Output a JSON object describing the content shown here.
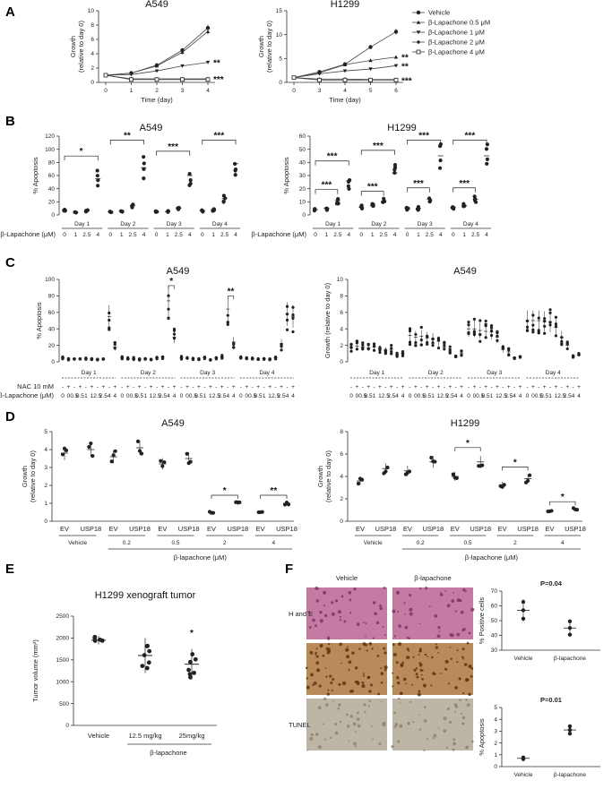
{
  "panels": [
    "A",
    "B",
    "C",
    "D",
    "E",
    "F"
  ],
  "chart_data": [
    {
      "id": "A-A549",
      "type": "line",
      "title": "A549",
      "xlabel": "Time (day)",
      "ylabel": "Growth\n(relative to day 0)",
      "x": [
        0,
        1,
        2,
        3,
        4
      ],
      "ylim": [
        0,
        10
      ],
      "yticks": [
        0,
        2,
        4,
        6,
        8,
        10
      ],
      "series": [
        {
          "name": "Vehicle",
          "marker": "circle",
          "values": [
            1,
            1.3,
            2.4,
            4.5,
            7.6
          ]
        },
        {
          "name": "β-Lapachone 0.5 μM",
          "marker": "triangle",
          "values": [
            1,
            1.3,
            2.3,
            4.2,
            7.1
          ]
        },
        {
          "name": "β-Lapachone 1 μM",
          "marker": "triangle-down",
          "values": [
            1,
            1.1,
            1.6,
            2.3,
            2.8
          ]
        },
        {
          "name": "β-Lapachone 2 μM",
          "marker": "diamond",
          "values": [
            1,
            0.5,
            0.5,
            0.5,
            0.5
          ]
        },
        {
          "name": "β-Lapachone 4 μM",
          "marker": "square-open",
          "values": [
            1,
            0.4,
            0.4,
            0.4,
            0.4
          ]
        }
      ],
      "annotations": [
        "**",
        "***"
      ]
    },
    {
      "id": "A-H1299",
      "type": "line",
      "title": "H1299",
      "xlabel": "Time (day)",
      "ylabel": "Growth\n(relative to day 0)",
      "x": [
        0,
        3,
        4,
        5,
        6
      ],
      "ylim": [
        0,
        15
      ],
      "yticks": [
        0,
        5,
        10,
        15
      ],
      "legend": [
        "Vehicle",
        "β-Lapachone 0.5 μM",
        "β-Lapachone 1 μM",
        "β-Lapachone 2 μM",
        "β-Lapachone 4 μM"
      ],
      "series": [
        {
          "name": "Vehicle",
          "marker": "circle",
          "values": [
            1,
            2.2,
            3.8,
            7.4,
            10.6
          ]
        },
        {
          "name": "β-Lapachone 0.5 μM",
          "marker": "triangle",
          "values": [
            1,
            2.0,
            3.7,
            4.6,
            5.3
          ]
        },
        {
          "name": "β-Lapachone 1 μM",
          "marker": "triangle-down",
          "values": [
            1,
            1.8,
            2.4,
            2.8,
            3.5
          ]
        },
        {
          "name": "β-Lapachone 2 μM",
          "marker": "diamond",
          "values": [
            1,
            0.7,
            0.7,
            0.6,
            0.6
          ]
        },
        {
          "name": "β-Lapachone 4 μM",
          "marker": "square-open",
          "values": [
            1,
            0.5,
            0.5,
            0.5,
            0.5
          ]
        }
      ],
      "annotations": [
        "**",
        "**",
        "***"
      ]
    },
    {
      "id": "B-A549",
      "type": "scatter",
      "title": "A549",
      "ylabel": "% Apoptosis",
      "ylim": [
        0,
        120
      ],
      "yticks": [
        0,
        20,
        40,
        60,
        80,
        100,
        120
      ],
      "groups": [
        "Day 1",
        "Day 2",
        "Day 3",
        "Day 4"
      ],
      "doses": [
        "0",
        "1",
        "2.5",
        "4"
      ],
      "xlabel_prefix": "β-Lapachone (μM)",
      "means": [
        [
          8,
          4,
          6,
          55
        ],
        [
          5,
          6,
          14,
          72
        ],
        [
          5,
          5,
          10,
          60
        ],
        [
          6,
          8,
          25,
          78
        ]
      ],
      "sig": [
        "*",
        "**",
        "***",
        "***"
      ]
    },
    {
      "id": "B-H1299",
      "type": "scatter",
      "title": "H1299",
      "ylabel": "% Apoptosis",
      "ylim": [
        0,
        60
      ],
      "yticks": [
        0,
        10,
        20,
        30,
        40,
        50,
        60
      ],
      "groups": [
        "Day 1",
        "Day 2",
        "Day 3",
        "Day 4"
      ],
      "doses": [
        "0",
        "1",
        "2.5",
        "4"
      ],
      "xlabel_prefix": "β-Lapachone (μM)",
      "means": [
        [
          4,
          5,
          11,
          26
        ],
        [
          6,
          7,
          10,
          32
        ],
        [
          5,
          5,
          12,
          45
        ],
        [
          6,
          7,
          12,
          45
        ]
      ],
      "sig": [
        "***",
        "***",
        "***",
        "***",
        "***",
        "***",
        "***",
        "***"
      ]
    },
    {
      "id": "C-left",
      "type": "scatter",
      "title": "A549",
      "ylabel": "% Apoptosis",
      "ylim": [
        0,
        100
      ],
      "yticks": [
        0,
        20,
        40,
        60,
        80,
        100
      ],
      "groups": [
        "Day 1",
        "Day 2",
        "Day 3",
        "Day 4"
      ],
      "row1_label": "NAC 10 mM",
      "row2_label": "β-Lapachone (μM)",
      "nac": [
        "-",
        "+",
        "-",
        "+",
        "-",
        "+",
        "-",
        "+",
        "-",
        "+"
      ],
      "dose": [
        "0",
        "0",
        "0.5",
        "0.5",
        "1",
        "1",
        "2.5",
        "2.5",
        "4",
        "4"
      ],
      "means": [
        [
          5,
          3,
          4,
          3,
          4,
          3,
          3,
          3,
          55,
          18
        ],
        [
          5,
          4,
          4,
          3,
          4,
          3,
          5,
          6,
          74,
          30
        ],
        [
          5,
          4,
          4,
          3,
          5,
          3,
          5,
          6,
          64,
          24
        ],
        [
          5,
          4,
          4,
          3,
          4,
          3,
          5,
          22,
          58,
          55
        ]
      ],
      "sig": [
        "*",
        "**"
      ]
    },
    {
      "id": "C-right",
      "type": "scatter",
      "title": "A549",
      "ylabel": "Growth (relative to day 0)",
      "ylim": [
        0,
        10
      ],
      "yticks": [
        0,
        2,
        4,
        6,
        8,
        10
      ],
      "groups": [
        "Day 1",
        "Day 2",
        "Day 3",
        "Day 4"
      ],
      "nac": [
        "-",
        "+",
        "-",
        "+",
        "-",
        "+",
        "-",
        "+",
        "-",
        "+"
      ],
      "dose": [
        "0",
        "0",
        "0.5",
        "0.5",
        "1",
        "1",
        "2.5",
        "2.5",
        "4",
        "4"
      ],
      "means": [
        [
          1.8,
          1.9,
          1.8,
          1.7,
          1.8,
          1.6,
          1.4,
          1.5,
          0.8,
          1.0
        ],
        [
          3.2,
          3.0,
          3.1,
          2.9,
          2.8,
          2.5,
          1.8,
          1.6,
          0.6,
          1.0
        ],
        [
          4.0,
          4.0,
          3.8,
          3.7,
          3.6,
          3.0,
          1.5,
          1.2,
          0.5,
          0.7
        ],
        [
          5.0,
          5.0,
          5.0,
          4.9,
          4.8,
          4.2,
          3.0,
          2.0,
          0.6,
          0.8
        ]
      ]
    },
    {
      "id": "D-A549",
      "type": "scatter",
      "title": "A549",
      "ylabel": "Growth\n(relative to day 0)",
      "ylim": [
        0,
        5
      ],
      "yticks": [
        0,
        1,
        2,
        3,
        4,
        5
      ],
      "categories": [
        "EV",
        "USP18",
        "EV",
        "USP18",
        "EV",
        "USP18",
        "EV",
        "USP18",
        "EV",
        "USP18"
      ],
      "treatments": [
        "Vehicle",
        "0.2",
        "0.5",
        "2",
        "4"
      ],
      "xlabel": "β-lapachone (μM)",
      "means": [
        3.8,
        4.0,
        3.6,
        4.1,
        3.2,
        3.5,
        0.5,
        1.0,
        0.5,
        1.0
      ],
      "sig": [
        "*",
        "**"
      ]
    },
    {
      "id": "D-H1299",
      "type": "scatter",
      "title": "H1299",
      "ylabel": "Growth\n(relative to day 0)",
      "ylim": [
        0,
        8
      ],
      "yticks": [
        0,
        2,
        4,
        6,
        8
      ],
      "categories": [
        "EV",
        "USP18",
        "EV",
        "USP18",
        "EV",
        "USP18",
        "EV",
        "USP18",
        "EV",
        "USP18"
      ],
      "treatments": [
        "Vehicle",
        "0.2",
        "0.5",
        "2",
        "4"
      ],
      "xlabel": "β-lapachone (μM)",
      "means": [
        3.6,
        4.7,
        4.5,
        5.3,
        4.0,
        5.3,
        3.2,
        3.8,
        0.9,
        1.1
      ],
      "sig": [
        "*",
        "*",
        "*"
      ]
    },
    {
      "id": "E",
      "type": "scatter",
      "title": "H1299 xenograft tumor",
      "ylabel": "Tumor volume (mm³)",
      "ylim": [
        0,
        2500
      ],
      "yticks": [
        0,
        500,
        1000,
        1500,
        2000,
        2500
      ],
      "categories": [
        "Vehicle",
        "12.5 mg/kg",
        "25mg/kg"
      ],
      "xlabel": "β-lapachone",
      "means": [
        1950,
        1600,
        1400
      ],
      "sig": [
        "*"
      ]
    },
    {
      "id": "F-top",
      "type": "scatter",
      "ylabel": "% Positive cells",
      "ylim": [
        30,
        70
      ],
      "yticks": [
        30,
        40,
        50,
        60,
        70
      ],
      "categories": [
        "Vehicle",
        "β-lapachone"
      ],
      "means": [
        57,
        45
      ],
      "pvalue": "P=0.04"
    },
    {
      "id": "F-bottom",
      "type": "scatter",
      "ylabel": "% Apoptosis",
      "ylim": [
        0,
        5
      ],
      "yticks": [
        0,
        1,
        2,
        3,
        4,
        5
      ],
      "categories": [
        "Vehicle",
        "β-lapachone"
      ],
      "means": [
        0.7,
        3.1
      ],
      "pvalue": "P=0.01"
    }
  ],
  "F_images": {
    "col_labels": [
      "Vehicle",
      "β-lapachone"
    ],
    "row_labels": [
      "H and E",
      "",
      "TUNEL"
    ],
    "colors": {
      "he": "#c57aa4",
      "ihc": "#b98a5a",
      "tunel": "#bdb6a6"
    }
  }
}
